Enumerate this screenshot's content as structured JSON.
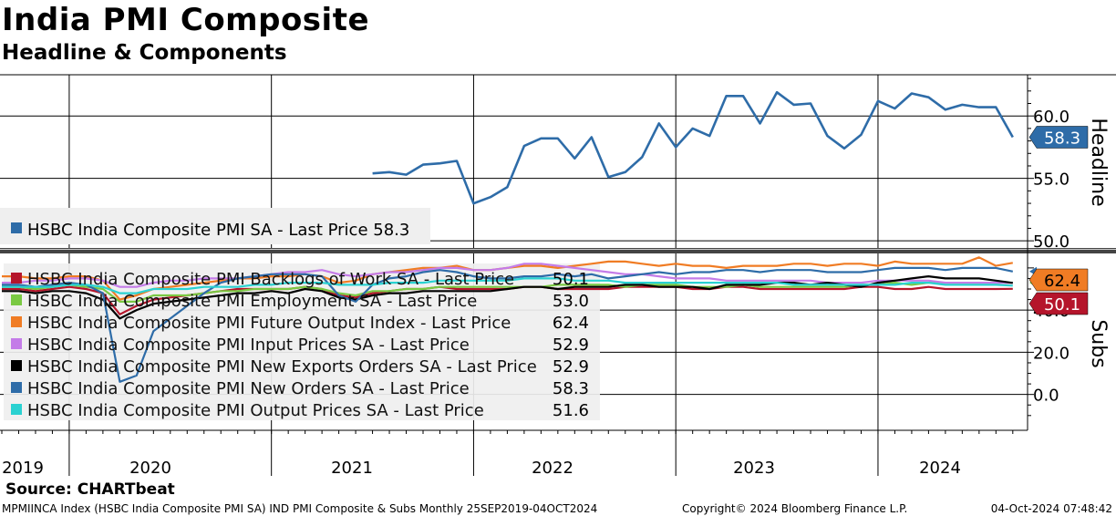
{
  "title": "India PMI Composite",
  "subtitle": "Headline & Components",
  "source": "Source: CHARTbeat",
  "footer": {
    "left": "MPMIINCA Index (HSBC India Composite PMI SA) IND PMI Composite & Subs  Monthly 25SEP2019-04OCT2024",
    "mid": "Copyright© 2024 Bloomberg Finance L.P.",
    "right": "04-Oct-2024 07:48:42"
  },
  "chart_data": [
    {
      "type": "line",
      "panel": "top",
      "ylabel": "Headline",
      "ylim": [
        49.5,
        63.3
      ],
      "yticks": [
        "60.0",
        "55.0",
        "50.0"
      ],
      "ytick_values": [
        60,
        55,
        50
      ],
      "last_value_label": "58.3",
      "legend_placement": "bottom-left",
      "series": [
        {
          "name": "HSBC India Composite PMI SA - Last Price 58.3",
          "color": "#2e6ca8",
          "x": [
            "2021-07",
            "2021-08",
            "2021-09",
            "2021-10",
            "2021-11",
            "2021-12",
            "2022-01",
            "2022-02",
            "2022-03",
            "2022-04",
            "2022-05",
            "2022-06",
            "2022-07",
            "2022-08",
            "2022-09",
            "2022-10",
            "2022-11",
            "2022-12",
            "2023-01",
            "2023-02",
            "2023-03",
            "2023-04",
            "2023-05",
            "2023-06",
            "2023-07",
            "2023-08",
            "2023-09",
            "2023-10",
            "2023-11",
            "2023-12",
            "2024-01",
            "2024-02",
            "2024-03",
            "2024-04",
            "2024-05",
            "2024-06",
            "2024-07",
            "2024-08",
            "2024-09"
          ],
          "values": [
            55.4,
            55.5,
            55.3,
            56.1,
            56.2,
            56.4,
            53.0,
            53.5,
            54.3,
            57.6,
            58.2,
            58.2,
            56.6,
            58.3,
            55.1,
            55.5,
            56.7,
            59.4,
            57.5,
            59.0,
            58.4,
            61.6,
            61.6,
            59.4,
            61.9,
            60.9,
            61.0,
            58.4,
            57.4,
            58.5,
            61.2,
            60.6,
            61.8,
            61.5,
            60.5,
            60.9,
            60.7,
            60.7,
            58.3
          ]
        }
      ]
    },
    {
      "type": "line",
      "panel": "bottom",
      "ylabel": "Subs",
      "ylim": [
        -17,
        66
      ],
      "yticks": [
        "40.0",
        "20.0",
        "0.0"
      ],
      "ytick_values": [
        40,
        20,
        0
      ],
      "last_value_labels": [
        "62.4",
        "50.1"
      ],
      "legend_placement": "top-left",
      "x": [
        "2019-09",
        "2019-10",
        "2019-11",
        "2019-12",
        "2020-01",
        "2020-02",
        "2020-03",
        "2020-04",
        "2020-05",
        "2020-06",
        "2020-07",
        "2020-08",
        "2020-09",
        "2020-10",
        "2020-11",
        "2020-12",
        "2021-01",
        "2021-02",
        "2021-03",
        "2021-04",
        "2021-05",
        "2021-06",
        "2021-07",
        "2021-08",
        "2021-09",
        "2021-10",
        "2021-11",
        "2021-12",
        "2022-01",
        "2022-02",
        "2022-03",
        "2022-04",
        "2022-05",
        "2022-06",
        "2022-07",
        "2022-08",
        "2022-09",
        "2022-10",
        "2022-11",
        "2022-12",
        "2023-01",
        "2023-02",
        "2023-03",
        "2023-04",
        "2023-05",
        "2023-06",
        "2023-07",
        "2023-08",
        "2023-09",
        "2023-10",
        "2023-11",
        "2023-12",
        "2024-01",
        "2024-02",
        "2024-03",
        "2024-04",
        "2024-05",
        "2024-06",
        "2024-07",
        "2024-08",
        "2024-09"
      ],
      "series": [
        {
          "name": "HSBC India Composite PMI Backlogs of Work SA - Last Price",
          "last": "50.1",
          "color": "#b5152b",
          "values": [
            50,
            50,
            49,
            50,
            51,
            50,
            48,
            38,
            42,
            45,
            46,
            47,
            48,
            49,
            50,
            50,
            50,
            50,
            51,
            50,
            47,
            46,
            48,
            49,
            50,
            50,
            51,
            50,
            50,
            50,
            50,
            51,
            51,
            50,
            50,
            50,
            50,
            51,
            51,
            51,
            51,
            50,
            50,
            51,
            51,
            50,
            50,
            50,
            50,
            50,
            50,
            51,
            51,
            50,
            50,
            51,
            50,
            50,
            50,
            50,
            50.1
          ]
        },
        {
          "name": "HSBC India Composite PMI Employment SA - Last Price",
          "last": "53.0",
          "color": "#7ac943",
          "values": [
            51,
            51,
            50,
            51,
            52,
            51,
            50,
            44,
            44,
            47,
            47,
            47,
            48,
            49,
            49,
            50,
            50,
            50,
            51,
            50,
            48,
            47,
            49,
            49,
            50,
            50,
            51,
            51,
            51,
            51,
            51,
            51,
            51,
            52,
            52,
            52,
            52,
            51,
            52,
            52,
            52,
            51,
            51,
            51,
            52,
            51,
            51,
            51,
            51,
            51,
            51,
            52,
            52,
            53,
            52,
            53,
            53,
            53,
            53,
            53,
            53.0
          ]
        },
        {
          "name": "HSBC India Composite PMI Future Output Index - Last Price",
          "last": "62.4",
          "color": "#f07c24",
          "values": [
            56,
            56,
            55,
            55,
            56,
            56,
            54,
            45,
            47,
            50,
            51,
            52,
            53,
            54,
            55,
            55,
            56,
            56,
            57,
            56,
            53,
            54,
            57,
            58,
            59,
            60,
            60,
            61,
            59,
            59,
            60,
            61,
            61,
            60,
            61,
            62,
            63,
            63,
            62,
            61,
            62,
            61,
            61,
            60,
            61,
            61,
            61,
            62,
            62,
            61,
            62,
            62,
            61,
            63,
            62,
            62,
            62,
            62,
            65,
            61,
            62.4
          ]
        },
        {
          "name": "HSBC India Composite PMI Input Prices SA - Last Price",
          "last": "52.9",
          "color": "#c47ce8",
          "values": [
            53,
            53,
            54,
            54,
            55,
            55,
            54,
            51,
            51,
            53,
            54,
            54,
            55,
            55,
            55,
            56,
            57,
            58,
            58,
            59,
            57,
            56,
            57,
            58,
            58,
            59,
            60,
            60,
            59,
            59,
            60,
            62,
            62,
            61,
            60,
            59,
            58,
            57,
            57,
            56,
            55,
            55,
            55,
            54,
            54,
            54,
            54,
            54,
            54,
            53,
            53,
            53,
            54,
            54,
            54,
            54,
            53,
            53,
            53,
            53,
            52.9
          ]
        },
        {
          "name": "HSBC India Composite PMI New Exports Orders SA - Last Price",
          "last": "52.9",
          "color": "#000000",
          "values": [
            49,
            49,
            48,
            49,
            49,
            48,
            45,
            36,
            40,
            43,
            44,
            45,
            46,
            47,
            48,
            48,
            49,
            48,
            50,
            49,
            46,
            45,
            47,
            48,
            48,
            49,
            49,
            49,
            49,
            49,
            50,
            51,
            51,
            50,
            51,
            51,
            51,
            52,
            52,
            51,
            51,
            51,
            50,
            52,
            52,
            52,
            53,
            53,
            52,
            53,
            52,
            51,
            53,
            54,
            55,
            56,
            55,
            55,
            55,
            54,
            52.9
          ]
        },
        {
          "name": "HSBC India Composite PMI New Orders SA - Last Price",
          "last": "58.3",
          "color": "#2e6ca8",
          "values": [
            52,
            52,
            51,
            52,
            53,
            52,
            48,
            6,
            9,
            30,
            36,
            42,
            48,
            53,
            55,
            56,
            57,
            57,
            57,
            56,
            47,
            44,
            52,
            55,
            56,
            58,
            59,
            58,
            56,
            55,
            55,
            56,
            56,
            57,
            56,
            57,
            55,
            56,
            57,
            58,
            57,
            58,
            58,
            59,
            59,
            58,
            59,
            59,
            59,
            58,
            58,
            58,
            59,
            60,
            60,
            60,
            59,
            60,
            60,
            60,
            58.3
          ]
        },
        {
          "name": "HSBC India Composite PMI Output Prices SA - Last Price",
          "last": "51.6",
          "color": "#2ad1d1",
          "values": [
            51,
            51,
            51,
            51,
            52,
            52,
            51,
            48,
            48,
            50,
            50,
            50,
            51,
            51,
            51,
            52,
            52,
            53,
            53,
            53,
            52,
            52,
            52,
            53,
            53,
            53,
            54,
            54,
            54,
            54,
            54,
            55,
            55,
            55,
            54,
            54,
            54,
            53,
            53,
            53,
            53,
            53,
            53,
            53,
            53,
            53,
            53,
            52,
            52,
            52,
            52,
            52,
            52,
            52,
            53,
            53,
            52,
            52,
            52,
            52,
            51.6
          ]
        }
      ]
    }
  ],
  "x_axis": {
    "year_labels": [
      "2019",
      "2020",
      "2021",
      "2022",
      "2023",
      "2024"
    ]
  }
}
